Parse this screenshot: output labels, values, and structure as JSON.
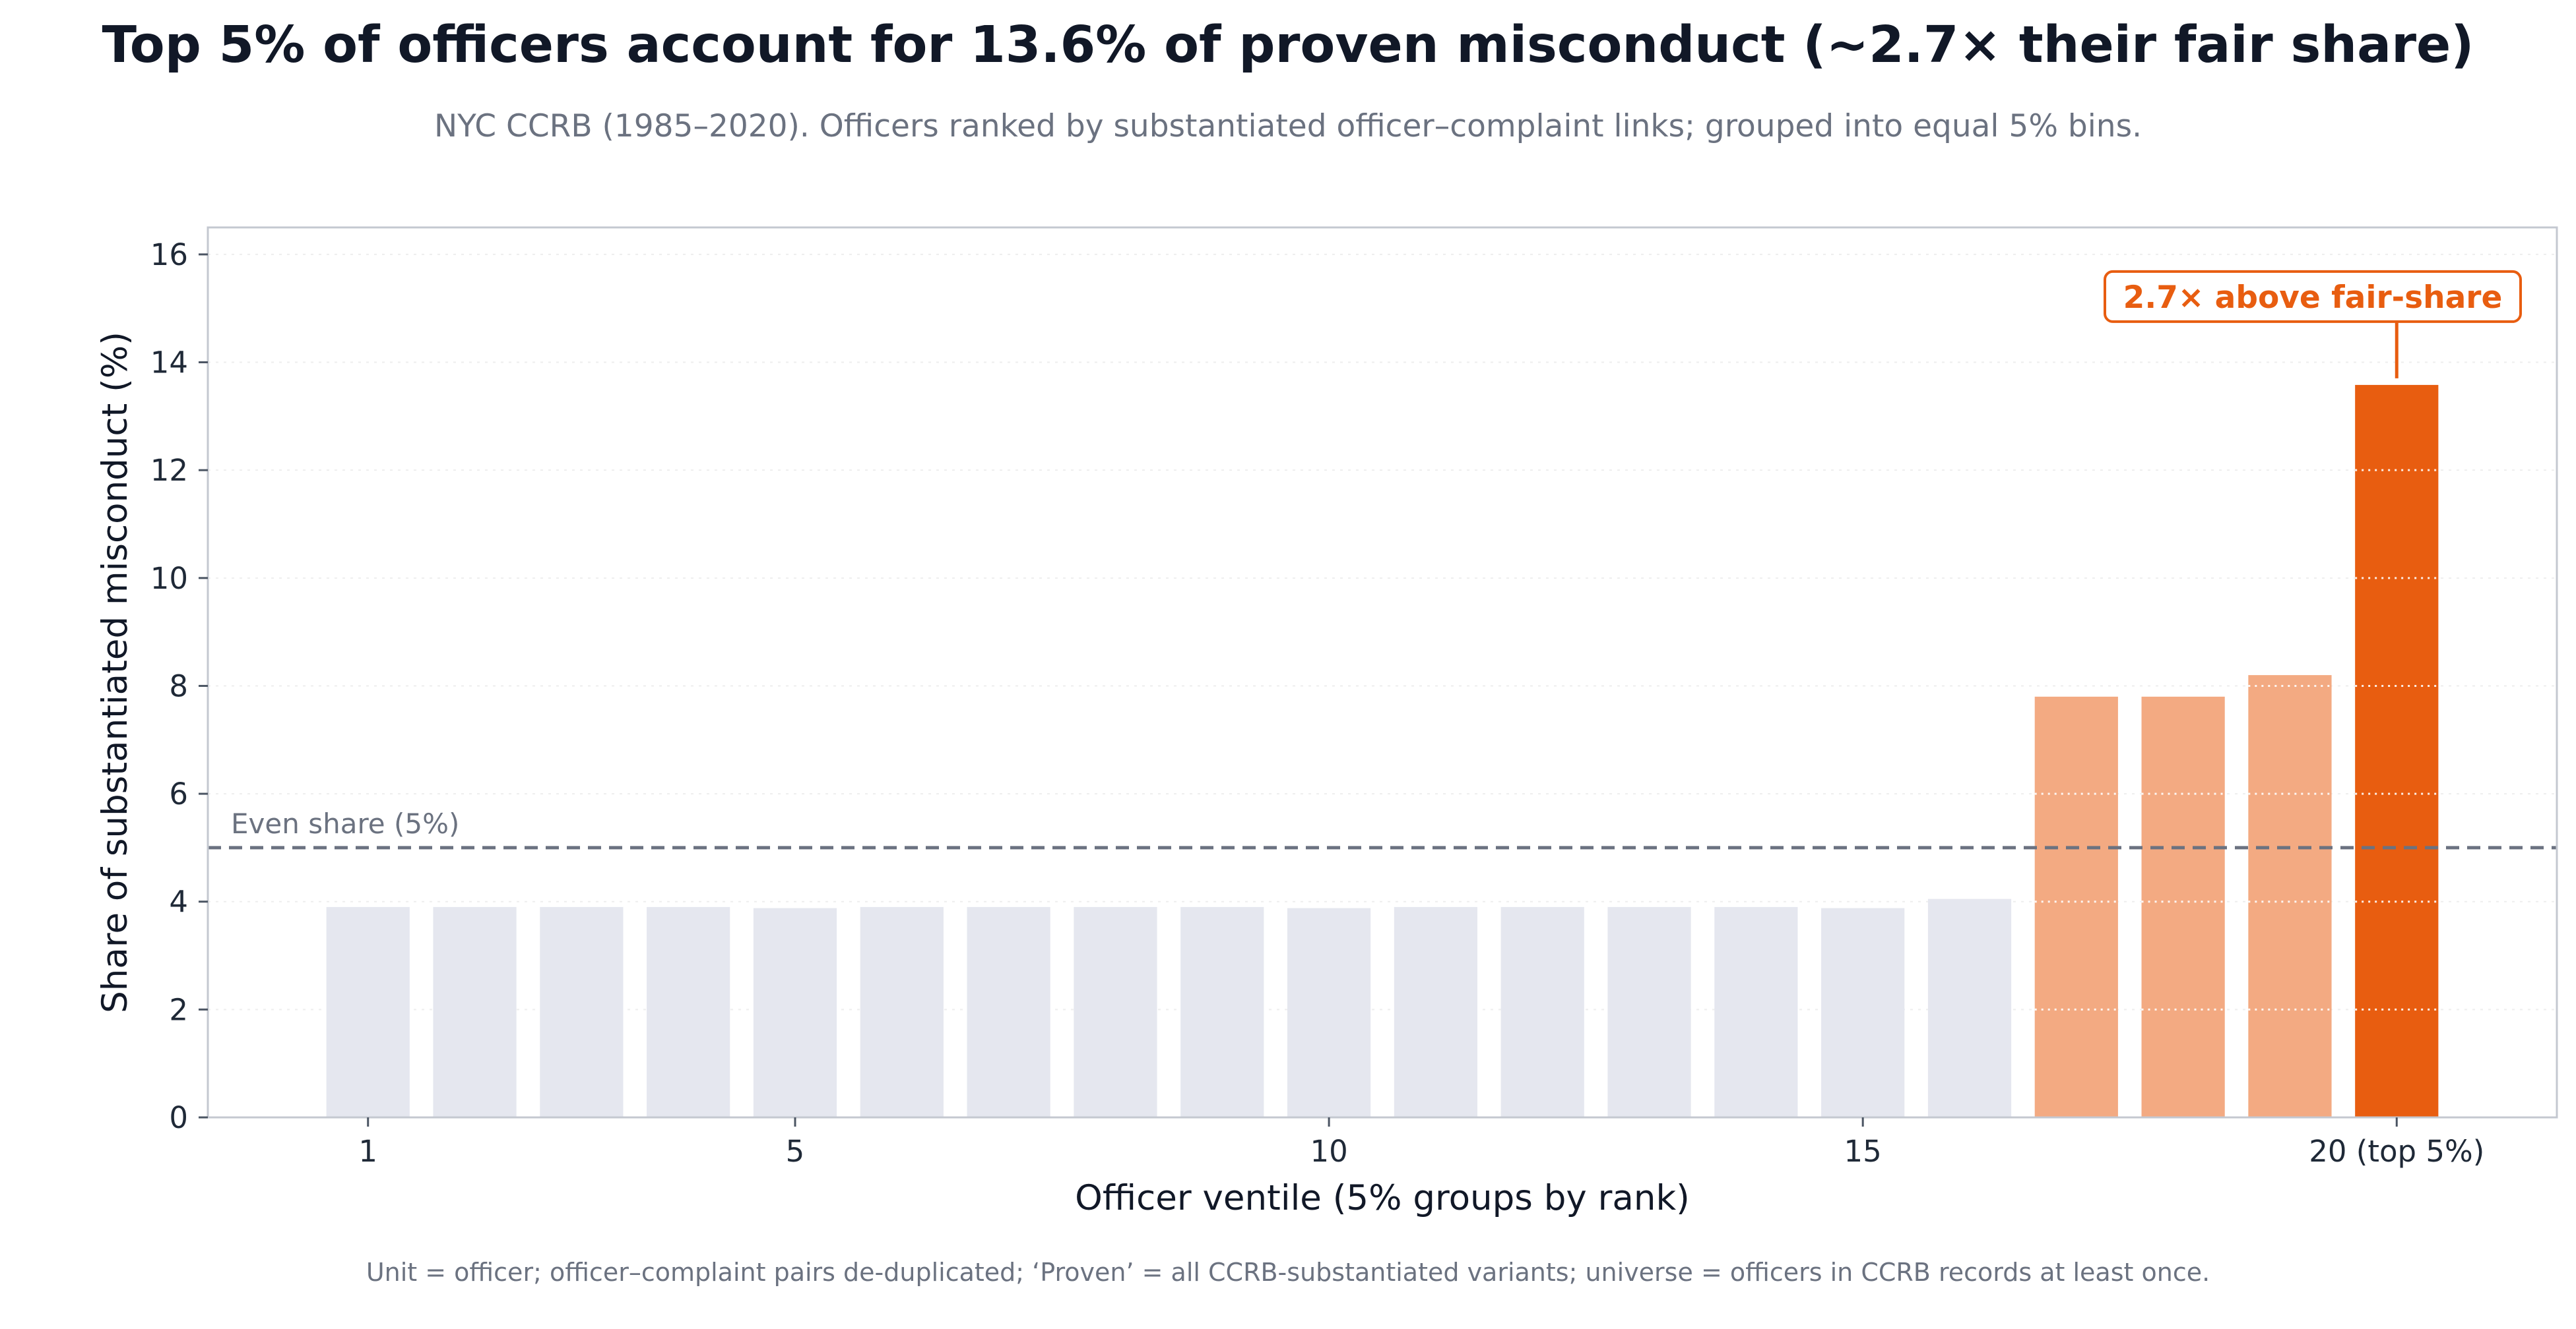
{
  "chart_data": {
    "type": "bar",
    "title": "Top 5% of officers account for 13.6% of proven misconduct (~2.7× their fair share)",
    "subtitle": "NYC CCRB (1985–2020). Officers ranked by substantiated officer–complaint links; grouped into equal 5% bins.",
    "footnote": "Unit = officer; officer–complaint pairs de-duplicated; ‘Proven’ = all CCRB-substantiated variants; universe = officers in CCRB records at least once.",
    "xlabel": "Officer ventile (5% groups by rank)",
    "ylabel": "Share of substantiated misconduct (%)",
    "categories": [
      "1",
      "2",
      "3",
      "4",
      "5",
      "6",
      "7",
      "8",
      "9",
      "10",
      "11",
      "12",
      "13",
      "14",
      "15",
      "16",
      "17",
      "18",
      "19",
      "20"
    ],
    "values": [
      3.9,
      3.9,
      3.9,
      3.9,
      3.88,
      3.9,
      3.9,
      3.9,
      3.9,
      3.88,
      3.9,
      3.9,
      3.9,
      3.9,
      3.88,
      4.05,
      7.8,
      7.8,
      8.2,
      13.58
    ],
    "x_ticks": [
      {
        "category": "1",
        "label": "1"
      },
      {
        "category": "5",
        "label": "5"
      },
      {
        "category": "10",
        "label": "10"
      },
      {
        "category": "15",
        "label": "15"
      },
      {
        "category": "20",
        "label": "20 (top 5%)"
      }
    ],
    "y_ticks": [
      0,
      2,
      4,
      6,
      8,
      10,
      12,
      14,
      16
    ],
    "ylim": [
      0,
      16.5
    ],
    "grid": true,
    "reference_line": {
      "value": 5,
      "label": "Even share (5%)",
      "color": "#6b7280"
    },
    "annotation": {
      "category": "20",
      "text": "2.7× above fair-share",
      "color": "#e85d10"
    },
    "colors": {
      "base": "#e5e7ef",
      "upper": "#f3aa82",
      "top": "#e85d10",
      "axis": "#c4c8d0",
      "grid": "#eeeeee"
    },
    "color_groups": {
      "base": [
        "1",
        "2",
        "3",
        "4",
        "5",
        "6",
        "7",
        "8",
        "9",
        "10",
        "11",
        "12",
        "13",
        "14",
        "15",
        "16"
      ],
      "upper": [
        "17",
        "18",
        "19"
      ],
      "top": [
        "20"
      ]
    }
  }
}
